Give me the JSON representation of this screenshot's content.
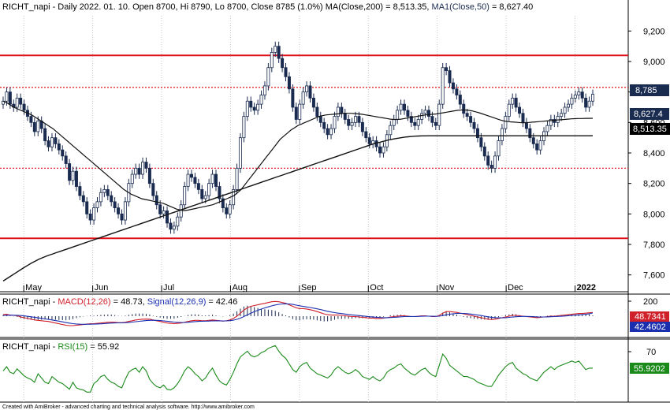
{
  "header": {
    "symbol": "RICHT_napi",
    "info": " - Daily 2022. 01. 10. Open 8700, Hi 8790, Lo 8700, Close 8785 (1.0%) ",
    "ma200_label": "MA(Close,200)",
    "ma200_value": " = 8,513.35, ",
    "ma50_label": "MA1(Close,50)",
    "ma50_value": " = 8,627.40"
  },
  "colors": {
    "candle": "#1a2b50",
    "resistance": "#e0101a",
    "ma50": "#111111",
    "ma200": "#111111",
    "macd": "#d0202a",
    "signal": "#1a2fb0",
    "rsi": "#1a8a1a"
  },
  "price_axis": {
    "ticks": [
      "9,200",
      "9,000",
      "8,800",
      "8,600",
      "8,400",
      "8,200",
      "8,000",
      "7,800",
      "7,600"
    ],
    "tick_values": [
      9200,
      9000,
      8800,
      8600,
      8400,
      8200,
      8000,
      7800,
      7600
    ],
    "last_price_tag": "8,785",
    "ma50_tag": "8,627.4",
    "ma200_tag": "8,513.35"
  },
  "time_axis": {
    "labels": [
      "May",
      "Jun",
      "Jul",
      "Aug",
      "Sep",
      "Oct",
      "Nov",
      "Dec",
      "2022"
    ]
  },
  "macd_panel": {
    "symbol": "RICHT_napi",
    "sep": " - ",
    "macd_label": "MACD(12,26)",
    "macd_value": " = 48.73, ",
    "signal_label": "Signal(12,26,9)",
    "signal_value": " = 42.46",
    "axis_tick": "200",
    "macd_tag": "48.7341",
    "signal_tag": "42.4602"
  },
  "rsi_panel": {
    "symbol": "RICHT_napi",
    "sep": " - ",
    "rsi_label": "RSI(15)",
    "rsi_value": " = 55.92",
    "axis_tick": "70",
    "rsi_tag": "55.9202"
  },
  "footer": "Created with AmiBroker - advanced charting and technical analysis software. http://www.amibroker.com",
  "chart_data": {
    "type": "line",
    "title": "RICHT_napi - Daily 2022. 01. 10. Open 8700, Hi 8790, Lo 8700, Close 8785 (1.0%)",
    "ylim": [
      7500,
      9300
    ],
    "horizontal_lines": {
      "solid": [
        9040,
        7840
      ],
      "dotted": [
        8830,
        8300
      ]
    },
    "months": [
      "May",
      "Jun",
      "Jul",
      "Aug",
      "Sep",
      "Oct",
      "Nov",
      "Dec",
      "2022"
    ],
    "close_series": {
      "name": "Close",
      "values": [
        8740,
        8800,
        8720,
        8700,
        8760,
        8720,
        8680,
        8640,
        8600,
        8540,
        8610,
        8560,
        8480,
        8440,
        8500,
        8460,
        8420,
        8380,
        8330,
        8220,
        8280,
        8180,
        8120,
        8080,
        8000,
        7960,
        8040,
        8080,
        8140,
        8160,
        8120,
        8080,
        8040,
        8000,
        7960,
        8080,
        8200,
        8260,
        8300,
        8260,
        8340,
        8300,
        8200,
        8120,
        8060,
        8000,
        8020,
        7940,
        7900,
        7920,
        7980,
        8060,
        8180,
        8260,
        8240,
        8200,
        8160,
        8100,
        8120,
        8200,
        8260,
        8180,
        8100,
        8040,
        8000,
        8060,
        8160,
        8300,
        8500,
        8640,
        8740,
        8700,
        8680,
        8720,
        8780,
        8840,
        8960,
        9060,
        9100,
        9020,
        8960,
        8900,
        8820,
        8700,
        8620,
        8720,
        8800,
        8840,
        8760,
        8700,
        8640,
        8600,
        8560,
        8520,
        8560,
        8640,
        8700,
        8660,
        8620,
        8580,
        8600,
        8640,
        8600,
        8540,
        8500,
        8460,
        8480,
        8440,
        8400,
        8440,
        8520,
        8580,
        8620,
        8680,
        8720,
        8680,
        8640,
        8600,
        8580,
        8620,
        8660,
        8680,
        8640,
        8600,
        8580,
        8720,
        8960,
        8940,
        8860,
        8820,
        8780,
        8720,
        8660,
        8640,
        8600,
        8560,
        8500,
        8440,
        8380,
        8320,
        8300,
        8380,
        8480,
        8560,
        8640,
        8720,
        8760,
        8700,
        8660,
        8600,
        8560,
        8500,
        8460,
        8420,
        8480,
        8540,
        8580,
        8620,
        8600,
        8640,
        8660,
        8700,
        8720,
        8760,
        8780,
        8800,
        8760,
        8700,
        8740,
        8785
      ]
    },
    "ma50_series": {
      "name": "MA1(Close,50)",
      "values": [
        8740,
        8730,
        8715,
        8700,
        8690,
        8680,
        8670,
        8660,
        8650,
        8635,
        8620,
        8605,
        8590,
        8575,
        8560,
        8540,
        8520,
        8500,
        8480,
        8460,
        8440,
        8420,
        8400,
        8380,
        8360,
        8340,
        8320,
        8300,
        8280,
        8260,
        8240,
        8220,
        8200,
        8180,
        8160,
        8145,
        8130,
        8120,
        8110,
        8100,
        8095,
        8090,
        8085,
        8080,
        8075,
        8070,
        8060,
        8050,
        8040,
        8030,
        8025,
        8022,
        8025,
        8030,
        8035,
        8040,
        8045,
        8050,
        8055,
        8060,
        8070,
        8080,
        8090,
        8100,
        8110,
        8120,
        8140,
        8160,
        8190,
        8220,
        8250,
        8280,
        8310,
        8340,
        8370,
        8400,
        8430,
        8460,
        8490,
        8510,
        8530,
        8550,
        8565,
        8580,
        8590,
        8600,
        8610,
        8620,
        8630,
        8640,
        8645,
        8650,
        8652,
        8654,
        8656,
        8658,
        8660,
        8660,
        8660,
        8658,
        8656,
        8654,
        8650,
        8646,
        8642,
        8638,
        8634,
        8630,
        8626,
        8622,
        8620,
        8620,
        8622,
        8626,
        8630,
        8634,
        8638,
        8642,
        8646,
        8650,
        8652,
        8654,
        8656,
        8660,
        8664,
        8668,
        8672,
        8676,
        8680,
        8682,
        8682,
        8680,
        8676,
        8670,
        8664,
        8656,
        8648,
        8640,
        8632,
        8624,
        8616,
        8610,
        8606,
        8604,
        8602,
        8600,
        8598,
        8598,
        8600,
        8602,
        8604,
        8606,
        8608,
        8610,
        8612,
        8614,
        8616,
        8618,
        8620,
        8622,
        8624,
        8625,
        8626,
        8626,
        8627,
        8627,
        8627.4
      ]
    },
    "ma200_series": {
      "name": "MA(Close,200)",
      "values": [
        7560,
        7575,
        7590,
        7605,
        7620,
        7635,
        7650,
        7664,
        7678,
        7690,
        7702,
        7712,
        7722,
        7730,
        7738,
        7746,
        7754,
        7762,
        7770,
        7778,
        7786,
        7794,
        7802,
        7810,
        7818,
        7826,
        7834,
        7842,
        7850,
        7858,
        7866,
        7874,
        7882,
        7890,
        7898,
        7906,
        7914,
        7922,
        7930,
        7938,
        7946,
        7954,
        7962,
        7970,
        7978,
        7986,
        7994,
        8002,
        8010,
        8018,
        8026,
        8034,
        8042,
        8050,
        8058,
        8066,
        8074,
        8082,
        8090,
        8098,
        8106,
        8114,
        8122,
        8130,
        8138,
        8146,
        8154,
        8162,
        8170,
        8178,
        8186,
        8194,
        8202,
        8210,
        8218,
        8226,
        8234,
        8242,
        8250,
        8258,
        8266,
        8274,
        8282,
        8290,
        8298,
        8306,
        8314,
        8322,
        8330,
        8338,
        8346,
        8354,
        8362,
        8370,
        8378,
        8386,
        8394,
        8402,
        8410,
        8418,
        8426,
        8434,
        8442,
        8450,
        8458,
        8464,
        8470,
        8476,
        8482,
        8488,
        8492,
        8496,
        8500,
        8504,
        8506,
        8508,
        8510,
        8511,
        8512,
        8512,
        8513,
        8513,
        8513,
        8513,
        8513,
        8513,
        8513,
        8513,
        8513,
        8513,
        8513,
        8513,
        8513,
        8513,
        8513,
        8513,
        8513,
        8513,
        8513,
        8513,
        8513,
        8513,
        8513,
        8513,
        8513,
        8513,
        8513,
        8513,
        8513,
        8513,
        8513,
        8513,
        8513,
        8513,
        8513,
        8513,
        8513,
        8513,
        8513,
        8513,
        8513,
        8513,
        8513,
        8513,
        8513,
        8513,
        8513.35
      ]
    },
    "macd": {
      "macd_final": 48.73,
      "signal_final": 42.46,
      "macd_values": [
        20,
        25,
        15,
        10,
        5,
        -10,
        -20,
        -30,
        -40,
        -50,
        -55,
        -60,
        -65,
        -70,
        -80,
        -90,
        -100,
        -110,
        -120,
        -125,
        -125,
        -120,
        -115,
        -110,
        -105,
        -100,
        -100,
        -95,
        -90,
        -85,
        -80,
        -78,
        -80,
        -85,
        -85,
        -80,
        -70,
        -60,
        -50,
        -45,
        -40,
        -38,
        -40,
        -50,
        -60,
        -70,
        -80,
        -90,
        -95,
        -100,
        -95,
        -90,
        -80,
        -70,
        -60,
        -55,
        -55,
        -60,
        -60,
        -55,
        -50,
        -55,
        -60,
        -65,
        -60,
        -50,
        -30,
        0,
        40,
        80,
        110,
        130,
        140,
        150,
        160,
        170,
        180,
        190,
        195,
        190,
        180,
        170,
        150,
        130,
        110,
        100,
        100,
        95,
        85,
        75,
        60,
        45,
        30,
        20,
        15,
        15,
        15,
        10,
        5,
        0,
        -5,
        -5,
        -10,
        -15,
        -20,
        -25,
        -25,
        -30,
        -30,
        -25,
        -20,
        -10,
        -5,
        0,
        5,
        5,
        0,
        -5,
        -5,
        0,
        5,
        5,
        0,
        -5,
        -5,
        10,
        40,
        60,
        60,
        55,
        50,
        40,
        30,
        20,
        10,
        0,
        -10,
        -20,
        -30,
        -40,
        -45,
        -40,
        -30,
        -20,
        -10,
        0,
        10,
        10,
        5,
        0,
        -5,
        -10,
        -15,
        -20,
        -15,
        -10,
        -5,
        0,
        0,
        5,
        10,
        15,
        20,
        25,
        30,
        35,
        35,
        40,
        45,
        48.73
      ],
      "signal_values": [
        10,
        12,
        13,
        12,
        11,
        8,
        4,
        -2,
        -8,
        -15,
        -22,
        -29,
        -36,
        -43,
        -50,
        -58,
        -66,
        -75,
        -84,
        -92,
        -99,
        -103,
        -106,
        -107,
        -107,
        -106,
        -105,
        -103,
        -101,
        -98,
        -95,
        -92,
        -89,
        -88,
        -87,
        -85,
        -82,
        -78,
        -73,
        -68,
        -63,
        -58,
        -55,
        -54,
        -55,
        -58,
        -62,
        -67,
        -72,
        -78,
        -81,
        -83,
        -82,
        -80,
        -76,
        -72,
        -69,
        -67,
        -66,
        -64,
        -62,
        -61,
        -61,
        -62,
        -61,
        -59,
        -53,
        -42,
        -26,
        -5,
        18,
        40,
        60,
        78,
        94,
        109,
        123,
        136,
        148,
        156,
        161,
        163,
        161,
        155,
        146,
        137,
        129,
        122,
        114,
        106,
        97,
        87,
        76,
        65,
        55,
        47,
        40,
        34,
        28,
        22,
        17,
        12,
        7,
        3,
        -2,
        -7,
        -11,
        -15,
        -18,
        -20,
        -20,
        -18,
        -15,
        -12,
        -8,
        -5,
        -4,
        -4,
        -4,
        -3,
        -1,
        0,
        0,
        -1,
        -2,
        0,
        8,
        18,
        26,
        32,
        36,
        37,
        36,
        33,
        28,
        22,
        15,
        8,
        0,
        -8,
        -15,
        -20,
        -22,
        -22,
        -20,
        -16,
        -11,
        -7,
        -4,
        -3,
        -3,
        -4,
        -6,
        -9,
        -10,
        -10,
        -9,
        -7,
        -5,
        -3,
        -1,
        2,
        6,
        10,
        14,
        18,
        22,
        26,
        30,
        42.46
      ]
    },
    "rsi": {
      "final": 55.92,
      "values": [
        52,
        58,
        50,
        48,
        55,
        50,
        45,
        42,
        40,
        36,
        48,
        42,
        36,
        34,
        44,
        40,
        36,
        34,
        30,
        26,
        36,
        28,
        26,
        25,
        22,
        22,
        34,
        38,
        44,
        46,
        40,
        36,
        34,
        30,
        28,
        40,
        50,
        54,
        56,
        50,
        58,
        52,
        40,
        34,
        30,
        28,
        32,
        26,
        25,
        28,
        34,
        42,
        52,
        58,
        54,
        48,
        44,
        38,
        42,
        50,
        56,
        46,
        38,
        34,
        32,
        40,
        50,
        62,
        72,
        76,
        80,
        74,
        72,
        74,
        78,
        80,
        84,
        86,
        88,
        80,
        74,
        70,
        62,
        54,
        50,
        58,
        62,
        64,
        56,
        52,
        48,
        46,
        44,
        42,
        46,
        54,
        58,
        54,
        50,
        48,
        50,
        54,
        50,
        44,
        42,
        40,
        44,
        40,
        38,
        42,
        50,
        54,
        56,
        60,
        62,
        56,
        52,
        48,
        46,
        50,
        54,
        56,
        50,
        46,
        44,
        60,
        76,
        70,
        60,
        56,
        52,
        48,
        44,
        44,
        42,
        40,
        36,
        34,
        32,
        30,
        30,
        38,
        46,
        52,
        58,
        62,
        64,
        56,
        52,
        48,
        46,
        42,
        40,
        38,
        44,
        50,
        54,
        58,
        54,
        58,
        60,
        62,
        64,
        66,
        64,
        66,
        60,
        54,
        56,
        55.92
      ]
    }
  }
}
